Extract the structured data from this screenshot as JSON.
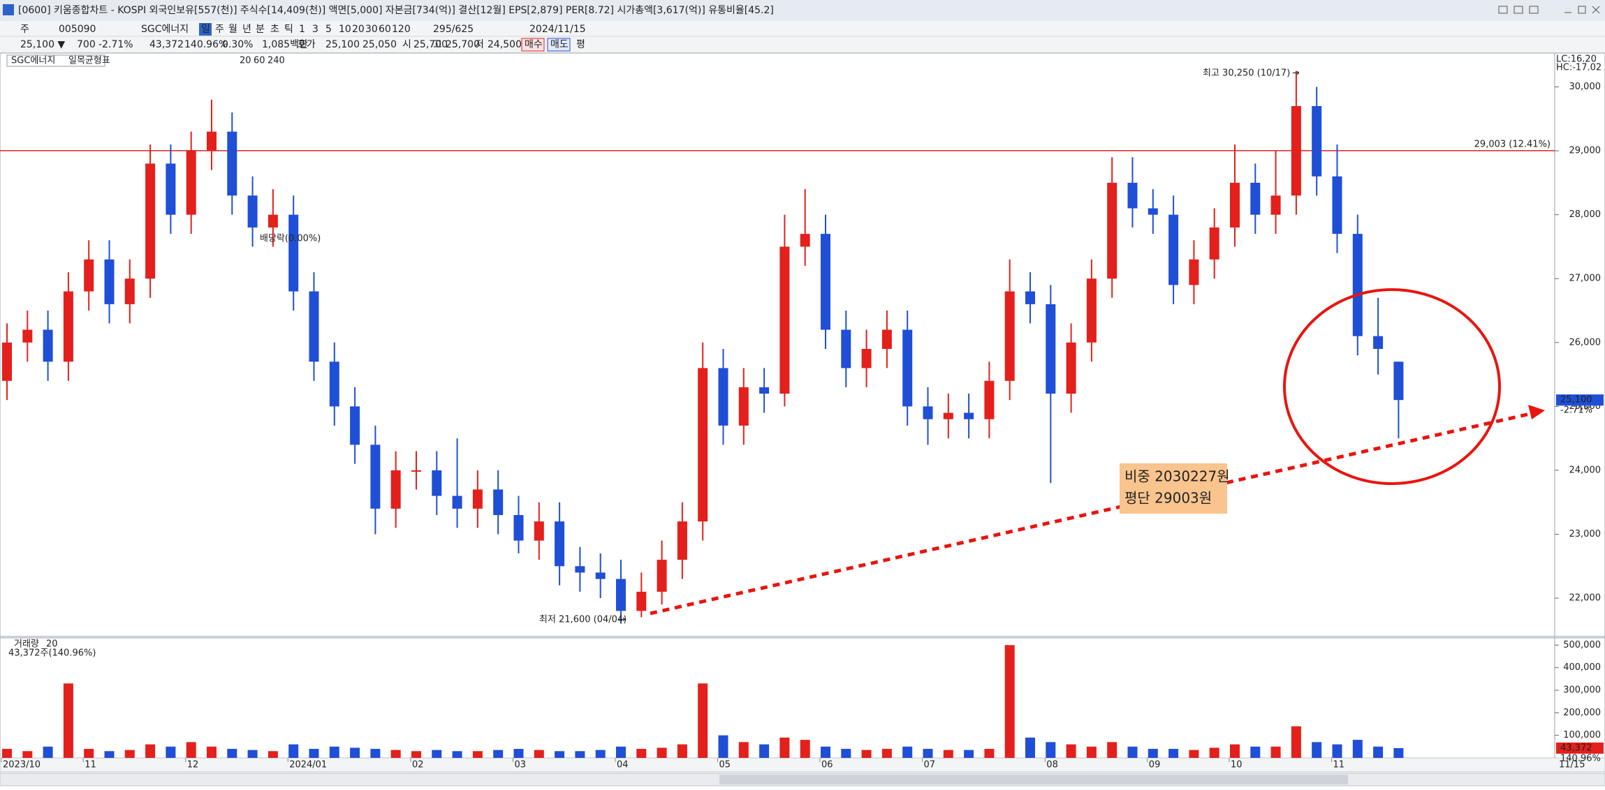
{
  "window": {
    "title": "[0600] 키움종합차트 - KOSPI 외국인보유[557(천)] 주식수[14,409(천)] 액면[5,000] 자본금[734(억)] 결산[12월] EPS[2,879] PER[8.72] 시가총액[3,617(억)] 유통비율[45.2]"
  },
  "toolbar": {
    "row1": [
      "주",
      "005090",
      "SGC에너지",
      "일",
      "주",
      "월",
      "년",
      "분",
      "초",
      "틱",
      "1",
      "3",
      "5",
      "10",
      "20",
      "30",
      "60",
      "120",
      "295/625",
      "2024/11/15"
    ],
    "row2": [
      "25,100 ▼",
      "700",
      "-2.71%",
      "43,372",
      "140.96%",
      "0.30%",
      "1,085백만",
      "호가",
      "25,100",
      "25,050",
      "시",
      "25,700",
      "고",
      "25,700",
      "저",
      "24,500",
      "매수",
      "매도",
      "평"
    ]
  },
  "chart_data": {
    "type": "candlestick",
    "legend": [
      "SGC에너지",
      "일목균형표",
      "20",
      "60",
      "240"
    ],
    "categories": [
      "2023/10",
      null,
      null,
      null,
      "11",
      null,
      null,
      null,
      null,
      "12",
      null,
      null,
      null,
      null,
      "2024/01",
      null,
      null,
      null,
      null,
      null,
      "02",
      null,
      null,
      null,
      null,
      "03",
      null,
      null,
      null,
      null,
      "04",
      null,
      null,
      null,
      null,
      "05",
      null,
      null,
      null,
      null,
      "06",
      null,
      null,
      null,
      null,
      "07",
      null,
      null,
      null,
      null,
      null,
      "08",
      null,
      null,
      null,
      null,
      "09",
      null,
      null,
      null,
      "10",
      null,
      null,
      null,
      null,
      "11",
      null,
      null,
      null
    ],
    "x_end_label": "11/15",
    "open": [
      25400,
      26000,
      26200,
      25700,
      26800,
      27300,
      26600,
      27000,
      28800,
      28000,
      29000,
      29300,
      28300,
      27800,
      28000,
      26800,
      25700,
      25000,
      24400,
      23400,
      24000,
      24000,
      23600,
      23400,
      23700,
      23300,
      22900,
      23200,
      22500,
      22400,
      22300,
      21800,
      22100,
      22600,
      23200,
      25600,
      24700,
      25300,
      25200,
      27500,
      27700,
      26200,
      25600,
      25900,
      26200,
      25000,
      24800,
      24900,
      24800,
      25400,
      26800,
      26600,
      25200,
      26000,
      27000,
      28500,
      28100,
      28000,
      26900,
      27300,
      27800,
      28500,
      28000,
      28300,
      29700,
      28600,
      27700,
      26100,
      25700
    ],
    "high": [
      26300,
      26500,
      26500,
      27100,
      27600,
      27600,
      27300,
      29100,
      29100,
      29300,
      29800,
      29600,
      28600,
      28400,
      28300,
      27100,
      26000,
      25300,
      24700,
      24300,
      24300,
      24300,
      24500,
      24000,
      24000,
      23600,
      23500,
      23500,
      22800,
      22700,
      22600,
      22400,
      22900,
      23500,
      26000,
      25900,
      25600,
      25600,
      28000,
      28400,
      28000,
      26500,
      26200,
      26500,
      26500,
      25300,
      25200,
      25200,
      25700,
      27300,
      27100,
      26900,
      26300,
      27300,
      28900,
      28900,
      28400,
      28300,
      27600,
      28100,
      29100,
      28800,
      29000,
      30250,
      30000,
      29100,
      28000,
      26700,
      25700
    ],
    "low": [
      25100,
      25700,
      25400,
      25400,
      26500,
      26300,
      26300,
      26700,
      27700,
      27700,
      28700,
      28000,
      27500,
      27500,
      26500,
      25400,
      24700,
      24100,
      23000,
      23100,
      23700,
      23300,
      23100,
      23100,
      23000,
      22700,
      22600,
      22200,
      22100,
      22000,
      21600,
      21700,
      21900,
      22300,
      22900,
      24400,
      24400,
      24900,
      25000,
      27200,
      25900,
      25300,
      25300,
      25600,
      24700,
      24400,
      24500,
      24500,
      24500,
      25100,
      26300,
      23800,
      24900,
      25700,
      26700,
      27800,
      27700,
      26600,
      26600,
      27000,
      27500,
      27700,
      27700,
      28000,
      28300,
      27400,
      25800,
      25500,
      24500
    ],
    "close": [
      26000,
      26200,
      25700,
      26800,
      27300,
      26600,
      27000,
      28800,
      28000,
      29000,
      29300,
      28300,
      27800,
      28000,
      26800,
      25700,
      25000,
      24400,
      23400,
      24000,
      24000,
      23600,
      23400,
      23700,
      23300,
      22900,
      23200,
      22500,
      22400,
      22300,
      21800,
      22100,
      22600,
      23200,
      25600,
      24700,
      25300,
      25200,
      27500,
      27700,
      26200,
      25600,
      25900,
      26200,
      25000,
      24800,
      24900,
      24800,
      25400,
      26800,
      26600,
      25200,
      26000,
      27000,
      28500,
      28100,
      28000,
      26900,
      27300,
      27800,
      28500,
      28000,
      28300,
      29700,
      28600,
      27700,
      26100,
      25900,
      25100
    ],
    "colors": {
      "up": "#e3201b",
      "down": "#1f4fd6"
    },
    "ylim": [
      21400,
      30530
    ],
    "yticks": [
      {
        "value": 22000,
        "label": "22,000"
      },
      {
        "value": 23000,
        "label": "23,000"
      },
      {
        "value": 24000,
        "label": "24,000"
      },
      {
        "value": 25000,
        "label": "25,000"
      },
      {
        "value": 26000,
        "label": "26,000"
      },
      {
        "value": 27000,
        "label": "27,000"
      },
      {
        "value": 28000,
        "label": "28,000"
      },
      {
        "value": 29000,
        "label": "29,000"
      },
      {
        "value": 30000,
        "label": "30,000"
      }
    ],
    "hline": {
      "value": 29003,
      "label": "29,003 (12.41%)",
      "color": "#e02020"
    },
    "last_price": {
      "value": 25100,
      "label": "25,100",
      "change": "-2.71%"
    },
    "lc": "LC:16.20",
    "hc": "HC:-17.02",
    "annotations": {
      "high": "최고 30,250 (10/17)",
      "low": "최저 21,600 (04/04)",
      "dividend": "배당락(0.00%)",
      "arrow": "→",
      "note": [
        "비중 2030227원",
        "평단 29003원"
      ]
    },
    "volume": {
      "title": "거래량",
      "period": "20",
      "summary": "43,372주(140.96%)",
      "last_label": "43,372",
      "last_ratio": "140.96%",
      "values": [
        40000,
        30000,
        50000,
        330000,
        40000,
        30000,
        35000,
        60000,
        50000,
        70000,
        50000,
        40000,
        35000,
        30000,
        60000,
        40000,
        50000,
        45000,
        40000,
        35000,
        30000,
        35000,
        30000,
        30000,
        35000,
        40000,
        35000,
        30000,
        30000,
        35000,
        50000,
        40000,
        45000,
        60000,
        330000,
        100000,
        70000,
        60000,
        90000,
        80000,
        50000,
        40000,
        35000,
        40000,
        50000,
        40000,
        35000,
        35000,
        40000,
        500000,
        90000,
        70000,
        60000,
        50000,
        70000,
        50000,
        40000,
        40000,
        35000,
        45000,
        60000,
        50000,
        50000,
        140000,
        70000,
        60000,
        80000,
        50000,
        43372
      ],
      "ylim": [
        0,
        532000
      ],
      "yticks": [
        {
          "value": 100000,
          "label": "100,000"
        },
        {
          "value": 200000,
          "label": "200,000"
        },
        {
          "value": 300000,
          "label": "300,000"
        },
        {
          "value": 400000,
          "label": "400,000"
        },
        {
          "value": 500000,
          "label": "500,000"
        }
      ]
    }
  }
}
